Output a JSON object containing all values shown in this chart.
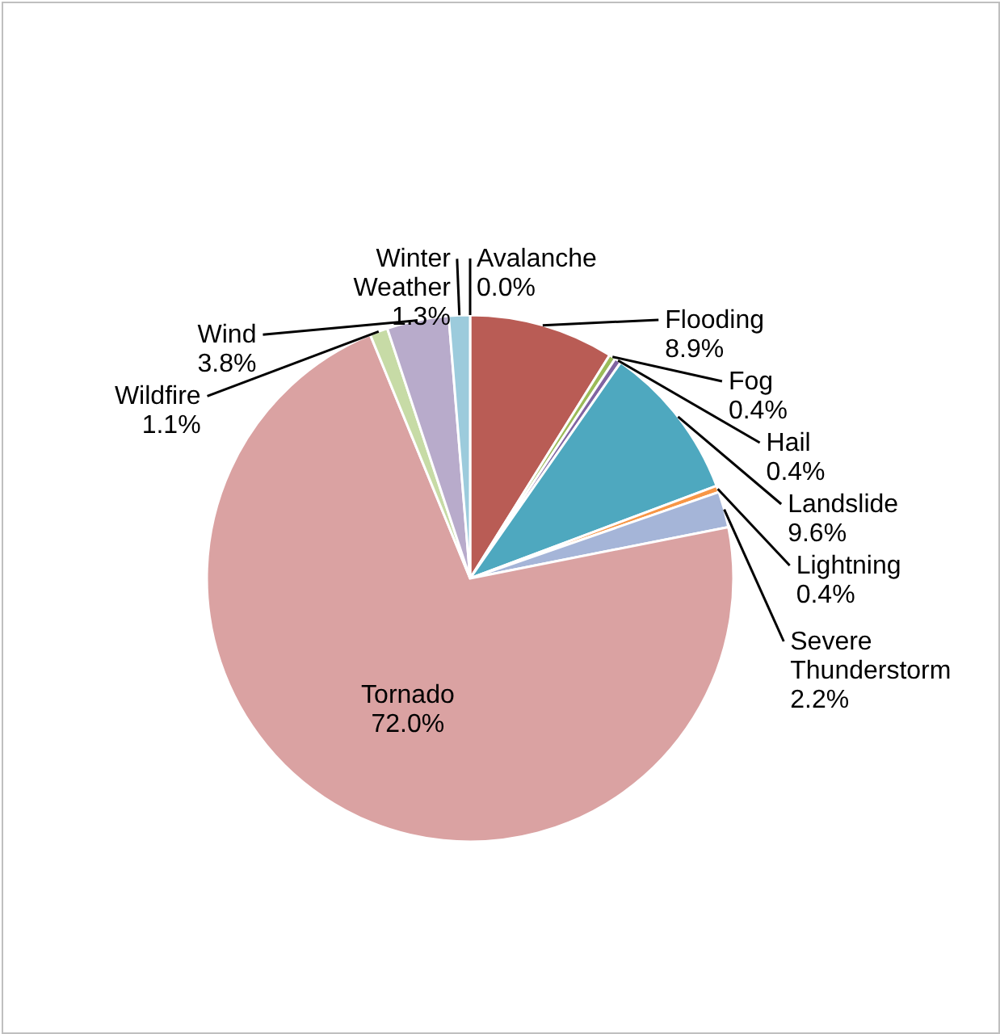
{
  "chart_data": {
    "type": "pie",
    "categories": [
      "Avalanche",
      "Flooding",
      "Fog",
      "Hail",
      "Landslide",
      "Lightning",
      "Severe Thunderstorm",
      "Tornado",
      "Wildfire",
      "Wind",
      "Winter Weather"
    ],
    "values": [
      0.0,
      8.9,
      0.4,
      0.4,
      9.6,
      0.4,
      2.2,
      72.0,
      1.1,
      3.8,
      1.3
    ],
    "value_labels": [
      "0.0%",
      "8.9%",
      "0.4%",
      "0.4%",
      "9.6%",
      "0.4%",
      "2.2%",
      "72.0%",
      "1.1%",
      "3.8%",
      "1.3%"
    ],
    "colors": [
      "#4f81bd",
      "#b95c55",
      "#9bbb59",
      "#8064a2",
      "#4ea8bf",
      "#f79646",
      "#a5b5d8",
      "#daa2a2",
      "#c7dba6",
      "#b8abcb",
      "#9ccbdc"
    ]
  }
}
